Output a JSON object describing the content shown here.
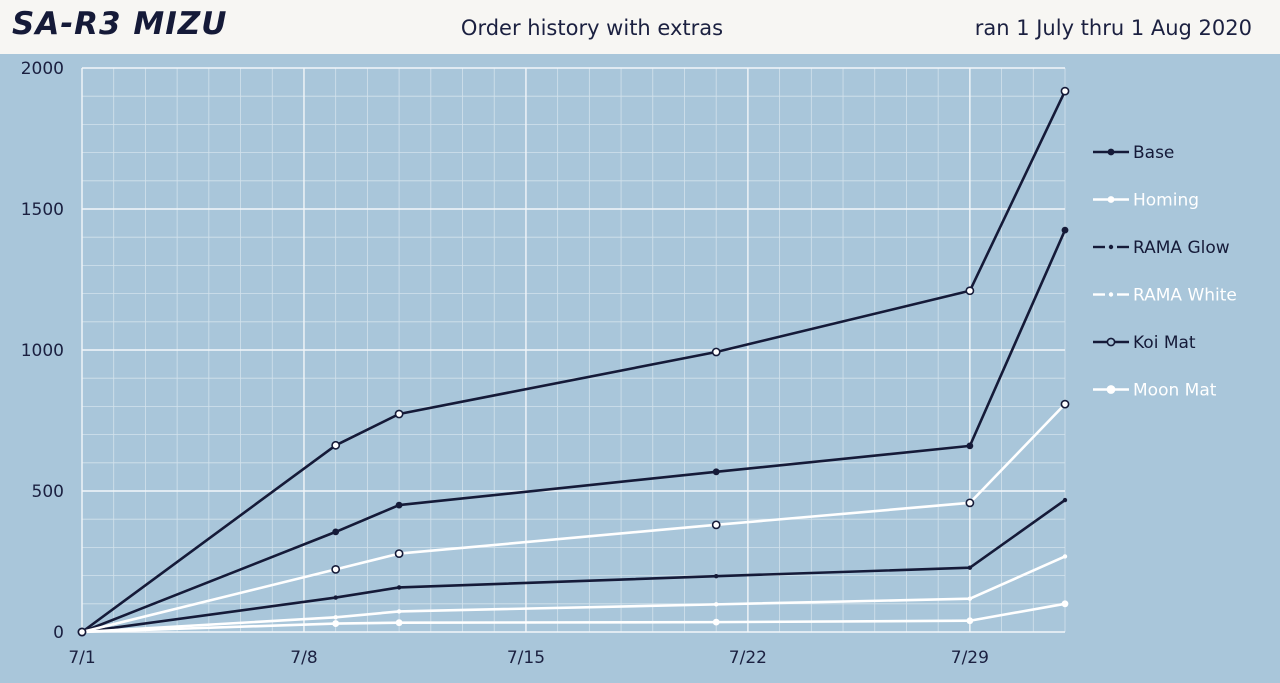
{
  "header": {
    "logo": "SA-R3 MIZU",
    "title": "Order history with extras",
    "date_range": "ran 1 July thru 1 Aug 2020"
  },
  "colors": {
    "background": "#a9c6da",
    "header_bg": "#f7f6f3",
    "navy": "#151a38",
    "white": "#ffffff"
  },
  "chart_data": {
    "type": "line",
    "title": "Order history with extras",
    "x": [
      "7/1",
      "7/9",
      "7/11",
      "7/21",
      "7/29",
      "8/1"
    ],
    "x_days": [
      0,
      8,
      10,
      20,
      28,
      31
    ],
    "xticks": [
      "7/1",
      "7/8",
      "7/15",
      "7/22",
      "7/29"
    ],
    "xtick_days": [
      0,
      7,
      14,
      21,
      28
    ],
    "ylim": [
      0,
      2000
    ],
    "yticks": [
      0,
      500,
      1000,
      1500,
      2000
    ],
    "grid": true,
    "legend_position": "right",
    "series": [
      {
        "name": "Base",
        "color": "#151a38",
        "marker": "filled",
        "dash": "solid",
        "values": [
          0,
          355,
          450,
          568,
          660,
          1425
        ]
      },
      {
        "name": "Homing",
        "color": "#ffffff",
        "marker": "filled",
        "dash": "solid",
        "values": [
          0,
          30,
          33,
          35,
          40,
          100
        ]
      },
      {
        "name": "RAMA Glow",
        "color": "#151a38",
        "marker": "small",
        "dash": "dashdot",
        "values": [
          0,
          122,
          158,
          198,
          228,
          468
        ]
      },
      {
        "name": "RAMA White",
        "color": "#ffffff",
        "marker": "small",
        "dash": "dashdot",
        "values": [
          0,
          52,
          73,
          98,
          118,
          268
        ]
      },
      {
        "name": "Koi Mat",
        "color": "#151a38",
        "marker": "open",
        "dash": "solid",
        "values": [
          0,
          662,
          773,
          993,
          1210,
          1918
        ]
      },
      {
        "name": "Moon Mat",
        "color": "#ffffff",
        "marker": "open",
        "dash": "solid",
        "values": [
          0,
          222,
          278,
          380,
          458,
          808
        ]
      }
    ]
  }
}
